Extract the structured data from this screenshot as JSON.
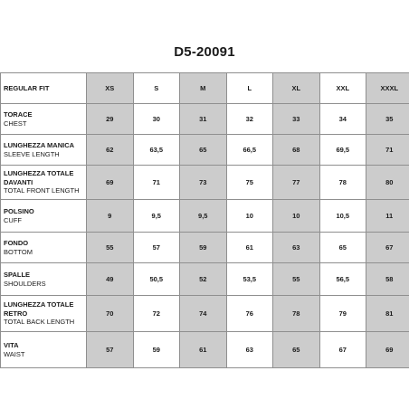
{
  "title": "D5-20091",
  "header": {
    "label": "REGULAR FIT",
    "sizes": [
      "XS",
      "S",
      "M",
      "L",
      "XL",
      "XXL",
      "XXXL"
    ]
  },
  "rows": [
    {
      "it": "TORACE",
      "en": "CHEST",
      "values": [
        "29",
        "30",
        "31",
        "32",
        "33",
        "34",
        "35"
      ]
    },
    {
      "it": "LUNGHEZZA MANICA",
      "en": "SLEEVE LENGTH",
      "values": [
        "62",
        "63,5",
        "65",
        "66,5",
        "68",
        "69,5",
        "71"
      ]
    },
    {
      "it": "LUNGHEZZA TOTALE DAVANTI",
      "en": "TOTAL FRONT LENGTH",
      "values": [
        "69",
        "71",
        "73",
        "75",
        "77",
        "78",
        "80"
      ]
    },
    {
      "it": "POLSINO",
      "en": "CUFF",
      "values": [
        "9",
        "9,5",
        "9,5",
        "10",
        "10",
        "10,5",
        "11"
      ]
    },
    {
      "it": "FONDO",
      "en": "BOTTOM",
      "values": [
        "55",
        "57",
        "59",
        "61",
        "63",
        "65",
        "67"
      ]
    },
    {
      "it": "SPALLE",
      "en": "SHOULDERS",
      "values": [
        "49",
        "50,5",
        "52",
        "53,5",
        "55",
        "56,5",
        "58"
      ]
    },
    {
      "it": "LUNGHEZZA TOTALE RETRO",
      "en": "TOTAL BACK LENGTH",
      "values": [
        "70",
        "72",
        "74",
        "76",
        "78",
        "79",
        "81"
      ]
    },
    {
      "it": "VITA",
      "en": "WAIST",
      "values": [
        "57",
        "59",
        "61",
        "63",
        "65",
        "67",
        "69"
      ]
    }
  ],
  "colors": {
    "shaded_column": "#cccccc",
    "grid_line": "#8f8f8f",
    "text": "#1a1a1a"
  }
}
